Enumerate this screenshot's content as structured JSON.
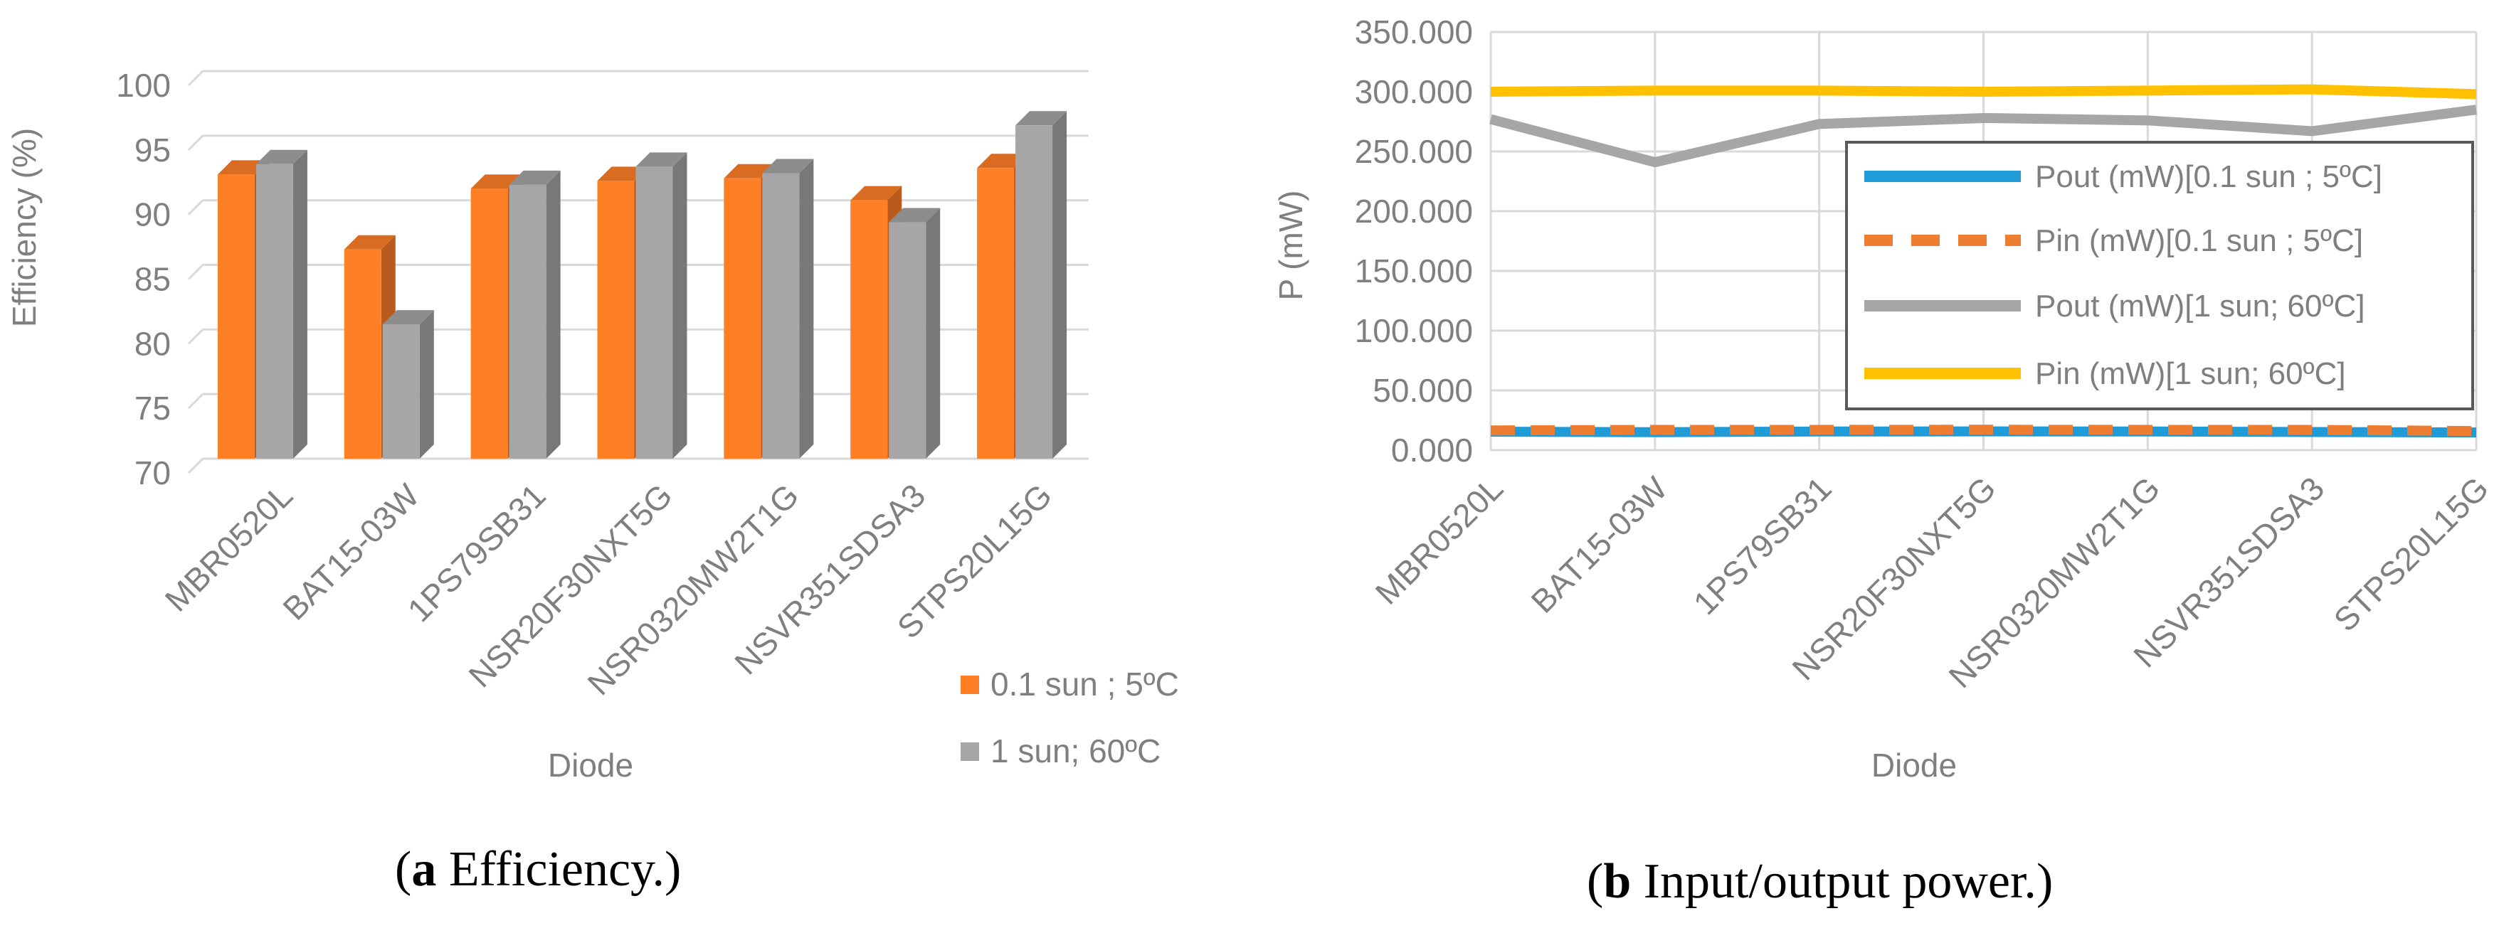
{
  "chart_data": [
    {
      "type": "bar",
      "style": "3d-clustered-column",
      "title": "",
      "xlabel": "Diode",
      "ylabel": "Efficiency  (%)",
      "ylim": [
        70,
        100
      ],
      "yticks": [
        70,
        75,
        80,
        85,
        90,
        95,
        100
      ],
      "ytick_labels": [
        "70",
        "75",
        "80",
        "85",
        "90",
        "95",
        "100"
      ],
      "grid": true,
      "legend_position": "bottom-right",
      "categories": [
        "MBR0520L",
        "BAT15-03W",
        "1PS79SB31",
        "NSR20F30NXT5G",
        "NSR0320MW2T1G",
        "NSVR351SDSA3",
        "STPS20L15G"
      ],
      "series": [
        {
          "name": "0.1 sun ; 5ºC",
          "color": "#FF7F27",
          "values": [
            92.0,
            86.2,
            90.9,
            91.5,
            91.7,
            90.0,
            92.5
          ]
        },
        {
          "name": "1 sun; 60ºC",
          "color": "#A6A6A6",
          "values": [
            92.8,
            80.4,
            91.2,
            92.6,
            92.1,
            88.3,
            95.8
          ]
        }
      ],
      "caption": {
        "letter": "a",
        "text": " Efficiency."
      }
    },
    {
      "type": "line",
      "title": "",
      "xlabel": "Diode",
      "ylabel": "P (mW)",
      "ylim": [
        0,
        350
      ],
      "yticks": [
        0,
        50,
        100,
        150,
        200,
        250,
        300,
        350
      ],
      "ytick_labels": [
        "0.000",
        "50.000",
        "100.000",
        "150.000",
        "200.000",
        "250.000",
        "300.000",
        "350.000"
      ],
      "grid": true,
      "legend_position": "center-right",
      "categories": [
        "MBR0520L",
        "BAT15-03W",
        "1PS79SB31",
        "NSR20F30NXT5G",
        "NSR0320MW2T1G",
        "NSVR351SDSA3",
        "STPS20L15G"
      ],
      "series": [
        {
          "name": "Pout (mW)[0.1 sun ; 5ºC]",
          "color": "#1F9BD7",
          "dash": false,
          "values": [
            15.5,
            15.0,
            15.6,
            15.7,
            15.6,
            15.2,
            14.8
          ]
        },
        {
          "name": "Pin (mW)[0.1 sun ; 5ºC]",
          "color": "#ED7D31",
          "dash": true,
          "values": [
            16.5,
            17.0,
            17.0,
            17.1,
            17.0,
            17.0,
            16.0
          ]
        },
        {
          "name": "Pout (mW)[1 sun; 60ºC]",
          "color": "#A6A6A6",
          "dash": false,
          "values": [
            277,
            241,
            273,
            278,
            276,
            267,
            285
          ]
        },
        {
          "name": "Pin (mW)[1 sun; 60ºC]",
          "color": "#FFC000",
          "dash": false,
          "values": [
            300,
            301,
            301,
            300,
            301,
            302,
            298
          ]
        }
      ],
      "caption": {
        "letter": "b",
        "text": " Input/output power."
      }
    }
  ]
}
